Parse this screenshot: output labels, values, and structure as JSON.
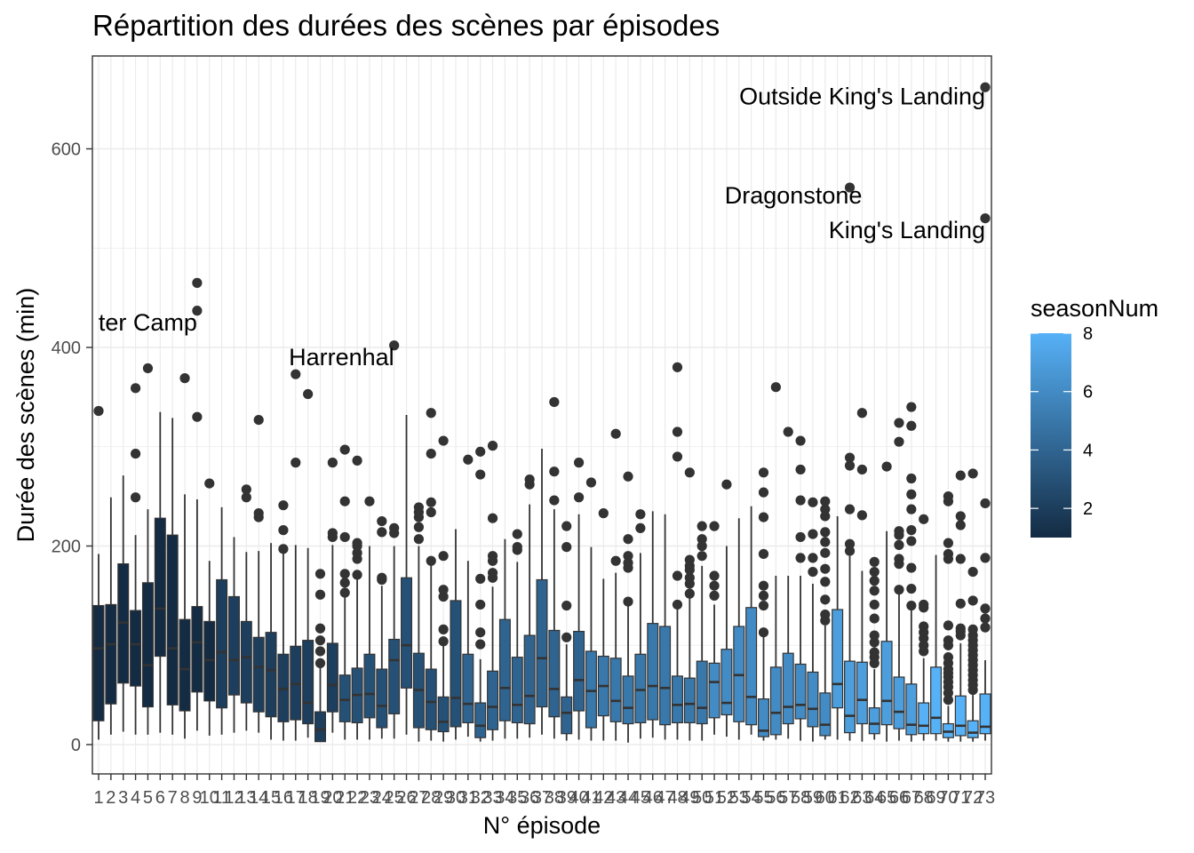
{
  "chart_data": {
    "type": "boxplot",
    "title": "Répartition des durées des scènes par épisodes",
    "xlabel": "N° épisode",
    "ylabel": "Durée des scènes (min)",
    "yticks": [
      0,
      200,
      400,
      600
    ],
    "ylim": [
      -30,
      690
    ],
    "grid": true,
    "legend": {
      "title": "seasonNum",
      "position": "right",
      "type": "colorbar",
      "range": [
        1,
        8
      ],
      "ticks": [
        2,
        4,
        6,
        8
      ],
      "low_color": "#132B43",
      "high_color": "#56B1F7"
    },
    "annotations": [
      {
        "text": "ter Camp",
        "episode": 9,
        "y": 425
      },
      {
        "text": "Harrenhal",
        "episode": 25,
        "y": 390
      },
      {
        "text": "Dragonstone",
        "episode": 63,
        "y": 553
      },
      {
        "text": "King's Landing",
        "episode": 73,
        "y": 518
      },
      {
        "text": "Outside King's Landing",
        "episode": 73,
        "y": 653
      }
    ],
    "boxes": [
      {
        "ep": 1,
        "s": 1,
        "lw": 5,
        "q1": 24,
        "med": 97,
        "q3": 140,
        "uw": 192,
        "out": [
          336
        ]
      },
      {
        "ep": 2,
        "s": 1,
        "lw": 10,
        "q1": 41,
        "med": 101,
        "q3": 141,
        "uw": 249,
        "out": []
      },
      {
        "ep": 3,
        "s": 1,
        "lw": 13,
        "q1": 62,
        "med": 123,
        "q3": 182,
        "uw": 271,
        "out": []
      },
      {
        "ep": 4,
        "s": 1,
        "lw": 10,
        "q1": 59,
        "med": 101,
        "q3": 135,
        "uw": 211,
        "out": [
          249,
          293,
          359
        ]
      },
      {
        "ep": 5,
        "s": 1,
        "lw": 10,
        "q1": 38,
        "med": 80,
        "q3": 163,
        "uw": 237,
        "out": [
          379
        ]
      },
      {
        "ep": 6,
        "s": 1,
        "lw": 12,
        "q1": 89,
        "med": 137,
        "q3": 228,
        "uw": 335,
        "out": []
      },
      {
        "ep": 7,
        "s": 1,
        "lw": 10,
        "q1": 40,
        "med": 97,
        "q3": 211,
        "uw": 329,
        "out": []
      },
      {
        "ep": 8,
        "s": 1,
        "lw": 6,
        "q1": 34,
        "med": 76,
        "q3": 126,
        "uw": 252,
        "out": [
          369
        ]
      },
      {
        "ep": 9,
        "s": 1,
        "lw": 14,
        "q1": 53,
        "med": 103,
        "q3": 139,
        "uw": 247,
        "out": [
          330,
          437,
          465
        ]
      },
      {
        "ep": 10,
        "s": 1,
        "lw": 9,
        "q1": 44,
        "med": 85,
        "q3": 124,
        "uw": 185,
        "out": [
          263
        ]
      },
      {
        "ep": 11,
        "s": 2,
        "lw": 10,
        "q1": 37,
        "med": 93,
        "q3": 166,
        "uw": 239,
        "out": []
      },
      {
        "ep": 12,
        "s": 2,
        "lw": 12,
        "q1": 50,
        "med": 85,
        "q3": 149,
        "uw": 209,
        "out": []
      },
      {
        "ep": 13,
        "s": 2,
        "lw": 14,
        "q1": 42,
        "med": 88,
        "q3": 124,
        "uw": 194,
        "out": [
          249,
          257
        ]
      },
      {
        "ep": 14,
        "s": 2,
        "lw": 12,
        "q1": 33,
        "med": 78,
        "q3": 108,
        "uw": 195,
        "out": [
          229,
          233,
          327
        ]
      },
      {
        "ep": 15,
        "s": 2,
        "lw": 5,
        "q1": 28,
        "med": 75,
        "q3": 113,
        "uw": 203,
        "out": []
      },
      {
        "ep": 16,
        "s": 2,
        "lw": 4,
        "q1": 23,
        "med": 56,
        "q3": 91,
        "uw": 193,
        "out": [
          197,
          216,
          241
        ]
      },
      {
        "ep": 17,
        "s": 2,
        "lw": 4,
        "q1": 25,
        "med": 61,
        "q3": 99,
        "uw": 201,
        "out": [
          284,
          373
        ]
      },
      {
        "ep": 18,
        "s": 2,
        "lw": 7,
        "q1": 21,
        "med": 42,
        "q3": 105,
        "uw": 198,
        "out": [
          353
        ]
      },
      {
        "ep": 19,
        "s": 2,
        "lw": 4,
        "q1": 3,
        "med": 15,
        "q3": 33,
        "uw": 78,
        "out": [
          82,
          94,
          105,
          117,
          151,
          172
        ]
      },
      {
        "ep": 20,
        "s": 2,
        "lw": 12,
        "q1": 33,
        "med": 60,
        "q3": 102,
        "uw": 201,
        "out": [
          209,
          213,
          284
        ]
      },
      {
        "ep": 21,
        "s": 3,
        "lw": 5,
        "q1": 23,
        "med": 45,
        "q3": 70,
        "uw": 149,
        "out": [
          153,
          163,
          172,
          209,
          245,
          297
        ]
      },
      {
        "ep": 22,
        "s": 3,
        "lw": 5,
        "q1": 22,
        "med": 50,
        "q3": 77,
        "uw": 166,
        "out": [
          171,
          187,
          193,
          200,
          203,
          286
        ]
      },
      {
        "ep": 23,
        "s": 3,
        "lw": 5,
        "q1": 27,
        "med": 51,
        "q3": 91,
        "uw": 200,
        "out": [
          245
        ]
      },
      {
        "ep": 24,
        "s": 3,
        "lw": 6,
        "q1": 17,
        "med": 39,
        "q3": 76,
        "uw": 160,
        "out": [
          166,
          168,
          214,
          225
        ]
      },
      {
        "ep": 25,
        "s": 3,
        "lw": 6,
        "q1": 31,
        "med": 85,
        "q3": 106,
        "uw": 200,
        "out": [
          213,
          218,
          402
        ]
      },
      {
        "ep": 26,
        "s": 3,
        "lw": 10,
        "q1": 57,
        "med": 100,
        "q3": 168,
        "uw": 332,
        "out": []
      },
      {
        "ep": 27,
        "s": 3,
        "lw": 3,
        "q1": 17,
        "med": 55,
        "q3": 92,
        "uw": 200,
        "out": [
          207,
          219,
          229,
          234,
          239
        ]
      },
      {
        "ep": 28,
        "s": 3,
        "lw": 4,
        "q1": 15,
        "med": 43,
        "q3": 76,
        "uw": 183,
        "out": [
          185,
          234,
          244,
          293,
          334
        ]
      },
      {
        "ep": 29,
        "s": 3,
        "lw": 3,
        "q1": 13,
        "med": 23,
        "q3": 48,
        "uw": 100,
        "out": [
          104,
          116,
          149,
          156,
          190,
          306
        ]
      },
      {
        "ep": 30,
        "s": 3,
        "lw": 5,
        "q1": 18,
        "med": 47,
        "q3": 145,
        "uw": 217,
        "out": []
      },
      {
        "ep": 31,
        "s": 4,
        "lw": 8,
        "q1": 22,
        "med": 41,
        "q3": 91,
        "uw": 185,
        "out": [
          287
        ]
      },
      {
        "ep": 32,
        "s": 4,
        "lw": 3,
        "q1": 7,
        "med": 19,
        "q3": 42,
        "uw": 86,
        "out": [
          101,
          113,
          141,
          167,
          272,
          295
        ]
      },
      {
        "ep": 33,
        "s": 4,
        "lw": 4,
        "q1": 15,
        "med": 38,
        "q3": 74,
        "uw": 159,
        "out": [
          168,
          173,
          185,
          190,
          228,
          301
        ]
      },
      {
        "ep": 34,
        "s": 4,
        "lw": 6,
        "q1": 24,
        "med": 57,
        "q3": 126,
        "uw": 207,
        "out": []
      },
      {
        "ep": 35,
        "s": 4,
        "lw": 6,
        "q1": 22,
        "med": 40,
        "q3": 88,
        "uw": 184,
        "out": [
          196,
          199,
          212
        ]
      },
      {
        "ep": 36,
        "s": 4,
        "lw": 7,
        "q1": 21,
        "med": 49,
        "q3": 110,
        "uw": 242,
        "out": [
          262,
          267
        ]
      },
      {
        "ep": 37,
        "s": 4,
        "lw": 10,
        "q1": 38,
        "med": 87,
        "q3": 166,
        "uw": 298,
        "out": []
      },
      {
        "ep": 38,
        "s": 4,
        "lw": 6,
        "q1": 28,
        "med": 56,
        "q3": 115,
        "uw": 237,
        "out": [
          246,
          275,
          345
        ]
      },
      {
        "ep": 39,
        "s": 4,
        "lw": 4,
        "q1": 11,
        "med": 32,
        "q3": 48,
        "uw": 101,
        "out": [
          108,
          140,
          199,
          220
        ]
      },
      {
        "ep": 40,
        "s": 4,
        "lw": 5,
        "q1": 34,
        "med": 65,
        "q3": 114,
        "uw": 232,
        "out": [
          249,
          284
        ]
      },
      {
        "ep": 41,
        "s": 5,
        "lw": 4,
        "q1": 17,
        "med": 54,
        "q3": 94,
        "uw": 199,
        "out": [
          264
        ]
      },
      {
        "ep": 42,
        "s": 5,
        "lw": 4,
        "q1": 29,
        "med": 59,
        "q3": 89,
        "uw": 167,
        "out": [
          233
        ]
      },
      {
        "ep": 43,
        "s": 5,
        "lw": 4,
        "q1": 23,
        "med": 44,
        "q3": 87,
        "uw": 173,
        "out": [
          185,
          313
        ]
      },
      {
        "ep": 44,
        "s": 5,
        "lw": 2,
        "q1": 21,
        "med": 37,
        "q3": 69,
        "uw": 142,
        "out": [
          144,
          178,
          183,
          190,
          207,
          270
        ]
      },
      {
        "ep": 45,
        "s": 5,
        "lw": 6,
        "q1": 22,
        "med": 55,
        "q3": 91,
        "uw": 193,
        "out": [
          218,
          232
        ]
      },
      {
        "ep": 46,
        "s": 5,
        "lw": 7,
        "q1": 25,
        "med": 59,
        "q3": 122,
        "uw": 235,
        "out": []
      },
      {
        "ep": 47,
        "s": 5,
        "lw": 5,
        "q1": 20,
        "med": 57,
        "q3": 119,
        "uw": 232,
        "out": []
      },
      {
        "ep": 48,
        "s": 5,
        "lw": 5,
        "q1": 22,
        "med": 40,
        "q3": 69,
        "uw": 140,
        "out": [
          141,
          170,
          290,
          315,
          380
        ]
      },
      {
        "ep": 49,
        "s": 5,
        "lw": 4,
        "q1": 22,
        "med": 41,
        "q3": 67,
        "uw": 151,
        "out": [
          152,
          162,
          168,
          176,
          180,
          186,
          274
        ]
      },
      {
        "ep": 50,
        "s": 5,
        "lw": 4,
        "q1": 21,
        "med": 37,
        "q3": 84,
        "uw": 180,
        "out": [
          190,
          200,
          207,
          220
        ]
      },
      {
        "ep": 51,
        "s": 6,
        "lw": 10,
        "q1": 27,
        "med": 63,
        "q3": 82,
        "uw": 141,
        "out": [
          150,
          160,
          170,
          220
        ]
      },
      {
        "ep": 52,
        "s": 6,
        "lw": 8,
        "q1": 30,
        "med": 42,
        "q3": 96,
        "uw": 200,
        "out": [
          262
        ]
      },
      {
        "ep": 53,
        "s": 6,
        "lw": 5,
        "q1": 23,
        "med": 70,
        "q3": 119,
        "uw": 228,
        "out": []
      },
      {
        "ep": 54,
        "s": 6,
        "lw": 10,
        "q1": 20,
        "med": 48,
        "q3": 138,
        "uw": 240,
        "out": []
      },
      {
        "ep": 55,
        "s": 6,
        "lw": 4,
        "q1": 8,
        "med": 14,
        "q3": 46,
        "uw": 111,
        "out": [
          113,
          140,
          150,
          160,
          192,
          229,
          254,
          274
        ]
      },
      {
        "ep": 56,
        "s": 6,
        "lw": 5,
        "q1": 10,
        "med": 32,
        "q3": 78,
        "uw": 170,
        "out": [
          360
        ]
      },
      {
        "ep": 57,
        "s": 6,
        "lw": 6,
        "q1": 21,
        "med": 38,
        "q3": 92,
        "uw": 170,
        "out": [
          315
        ]
      },
      {
        "ep": 58,
        "s": 6,
        "lw": 4,
        "q1": 26,
        "med": 40,
        "q3": 81,
        "uw": 170,
        "out": [
          188,
          209,
          246,
          277,
          306
        ]
      },
      {
        "ep": 59,
        "s": 6,
        "lw": 3,
        "q1": 18,
        "med": 36,
        "q3": 73,
        "uw": 162,
        "out": [
          174,
          188,
          212,
          244
        ]
      },
      {
        "ep": 60,
        "s": 6,
        "lw": 5,
        "q1": 9,
        "med": 20,
        "q3": 52,
        "uw": 120,
        "out": [
          125,
          131,
          146,
          164,
          177,
          193,
          204,
          214,
          230,
          237,
          245
        ]
      },
      {
        "ep": 61,
        "s": 7,
        "lw": 5,
        "q1": 37,
        "med": 61,
        "q3": 136,
        "uw": 230,
        "out": []
      },
      {
        "ep": 62,
        "s": 7,
        "lw": 4,
        "q1": 12,
        "med": 29,
        "q3": 84,
        "uw": 190,
        "out": [
          195,
          202,
          237,
          281,
          289,
          561
        ]
      },
      {
        "ep": 63,
        "s": 7,
        "lw": 3,
        "q1": 21,
        "med": 45,
        "q3": 83,
        "uw": 175,
        "out": [
          231,
          277,
          334
        ]
      },
      {
        "ep": 64,
        "s": 7,
        "lw": 5,
        "q1": 11,
        "med": 21,
        "q3": 37,
        "uw": 76,
        "out": [
          82,
          88,
          93,
          103,
          110,
          127,
          141,
          155,
          165,
          174,
          184
        ]
      },
      {
        "ep": 65,
        "s": 7,
        "lw": 3,
        "q1": 20,
        "med": 44,
        "q3": 104,
        "uw": 215,
        "out": [
          280
        ]
      },
      {
        "ep": 66,
        "s": 7,
        "lw": 4,
        "q1": 16,
        "med": 33,
        "q3": 68,
        "uw": 152,
        "out": [
          156,
          182,
          187,
          201,
          211,
          215,
          305,
          324
        ]
      },
      {
        "ep": 67,
        "s": 7,
        "lw": 3,
        "q1": 10,
        "med": 20,
        "q3": 61,
        "uw": 138,
        "out": [
          140,
          157,
          178,
          205,
          216,
          237,
          252,
          268,
          321,
          340
        ]
      },
      {
        "ep": 68,
        "s": 8,
        "lw": 4,
        "q1": 11,
        "med": 19,
        "q3": 42,
        "uw": 87,
        "out": [
          94,
          100,
          107,
          113,
          119,
          138,
          141,
          227
        ]
      },
      {
        "ep": 69,
        "s": 8,
        "lw": 4,
        "q1": 11,
        "med": 27,
        "q3": 78,
        "uw": 191,
        "out": []
      },
      {
        "ep": 70,
        "s": 8,
        "lw": 3,
        "q1": 7,
        "med": 13,
        "q3": 21,
        "uw": 39,
        "out": [
          45,
          52,
          58,
          63,
          68,
          72,
          76,
          82,
          88,
          100,
          105,
          120,
          187,
          192,
          203,
          245,
          250
        ]
      },
      {
        "ep": 71,
        "s": 8,
        "lw": 3,
        "q1": 9,
        "med": 19,
        "q3": 49,
        "uw": 102,
        "out": [
          110,
          114,
          117,
          142,
          187,
          221,
          230,
          271
        ]
      },
      {
        "ep": 72,
        "s": 8,
        "lw": 3,
        "q1": 7,
        "med": 12,
        "q3": 24,
        "uw": 50,
        "out": [
          55,
          60,
          65,
          70,
          75,
          80,
          85,
          90,
          95,
          100,
          105,
          110,
          116,
          145,
          174,
          273
        ]
      },
      {
        "ep": 73,
        "s": 8,
        "lw": 4,
        "q1": 11,
        "med": 18,
        "q3": 51,
        "uw": 85,
        "out": [
          118,
          127,
          137,
          188,
          243,
          530,
          662
        ]
      }
    ]
  }
}
